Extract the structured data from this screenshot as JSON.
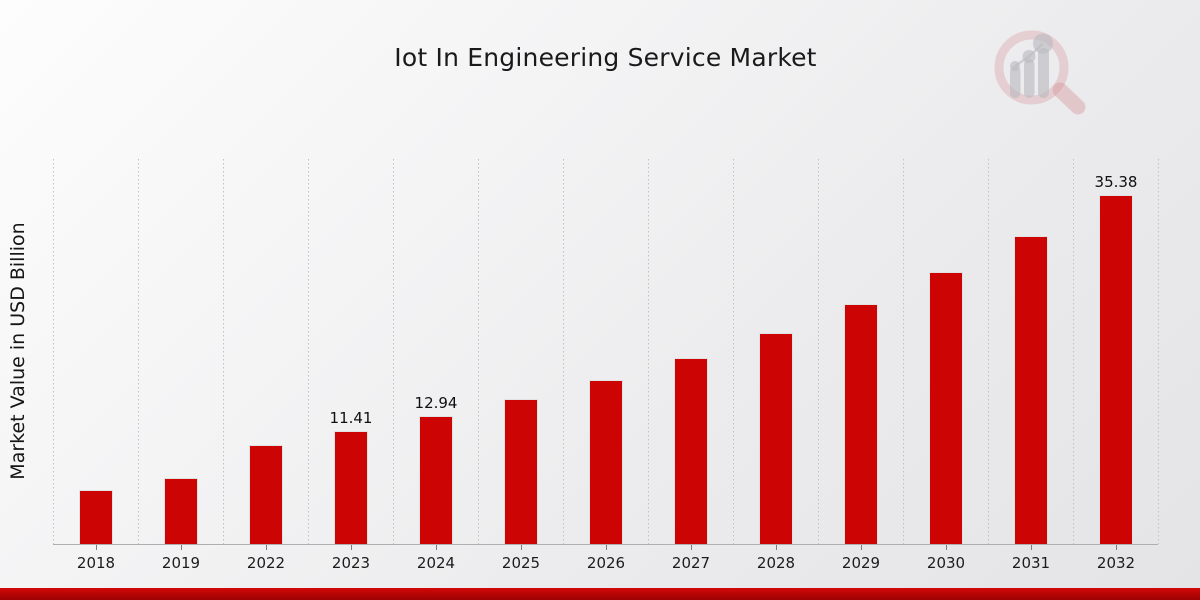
{
  "chart_data": {
    "type": "bar",
    "title": "Iot In Engineering Service Market",
    "ylabel": "Market Value in USD Billion",
    "xlabel": "",
    "categories": [
      "2018",
      "2019",
      "2022",
      "2023",
      "2024",
      "2025",
      "2026",
      "2027",
      "2028",
      "2029",
      "2030",
      "2031",
      "2032"
    ],
    "values": [
      5.5,
      6.71,
      10.06,
      11.41,
      12.94,
      14.67,
      16.64,
      18.87,
      21.4,
      24.27,
      27.52,
      31.21,
      35.38
    ],
    "data_labels": {
      "2023": "11.41",
      "2024": "12.94",
      "2032": "35.38"
    },
    "ylim": [
      0,
      39
    ],
    "bar_color": "#cc0404",
    "grid": "vertical-dashed",
    "legend": "none"
  },
  "footer": {
    "accent_color": "#cc0404"
  },
  "logo": {
    "icon": "magnifier-bar-chart-watermark"
  }
}
